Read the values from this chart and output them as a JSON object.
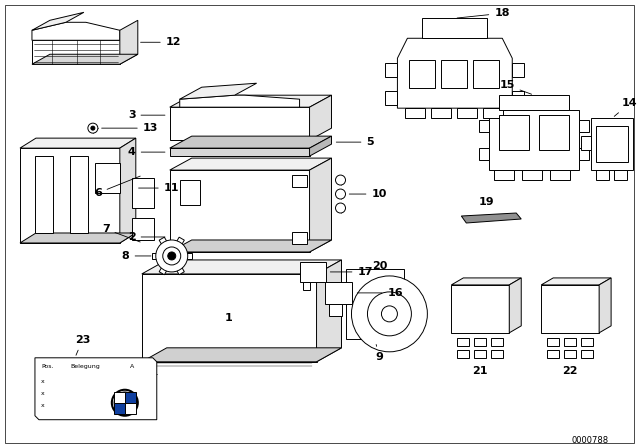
{
  "background_color": "#ffffff",
  "line_color": "#000000",
  "diagram_id": "0000788",
  "figsize": [
    6.4,
    4.48
  ],
  "dpi": 100,
  "border": [
    5,
    5,
    630,
    438
  ]
}
